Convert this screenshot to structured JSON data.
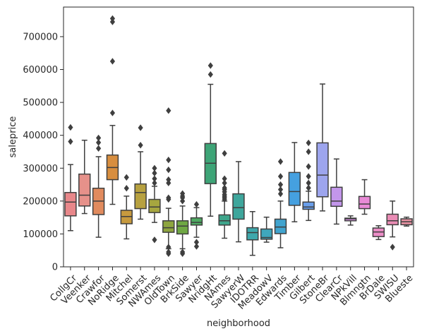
{
  "chart_data": {
    "type": "box",
    "xlabel": "neighborhood",
    "ylabel": "saleprice",
    "ylim": [
      0,
      790000
    ],
    "yticks": [
      0,
      100000,
      200000,
      300000,
      400000,
      500000,
      600000,
      700000
    ],
    "grid": false,
    "categories": [
      {
        "name": "CollgCr",
        "color": "#e8878a",
        "q1": 155000,
        "median": 197000,
        "q3": 226000,
        "whisker_low": 110000,
        "whisker_high": 311000,
        "outliers": [
          381000,
          424000
        ]
      },
      {
        "name": "Veenker",
        "color": "#e6918a",
        "q1": 185000,
        "median": 218000,
        "q3": 282000,
        "whisker_low": 162000,
        "whisker_high": 385000,
        "outliers": []
      },
      {
        "name": "Crawfor",
        "color": "#e18b5e",
        "q1": 159000,
        "median": 200000,
        "q3": 239000,
        "whisker_low": 90000,
        "whisker_high": 335000,
        "outliers": [
          360000,
          378000,
          392000
        ]
      },
      {
        "name": "NoRidge",
        "color": "#d88e3f",
        "q1": 265000,
        "median": 302000,
        "q3": 340000,
        "whisker_low": 190000,
        "whisker_high": 430000,
        "outliers": [
          468000,
          625000,
          745000,
          755000
        ]
      },
      {
        "name": "Mitchel",
        "color": "#c79a3e",
        "q1": 131000,
        "median": 153000,
        "q3": 172000,
        "whisker_low": 85000,
        "whisker_high": 215000,
        "outliers": [
          239000,
          272000
        ]
      },
      {
        "name": "Somerst",
        "color": "#b7a140",
        "q1": 177000,
        "median": 226000,
        "q3": 252000,
        "whisker_low": 145000,
        "whisker_high": 350000,
        "outliers": [
          370000,
          423000
        ]
      },
      {
        "name": "NWAmes",
        "color": "#a6a63f",
        "q1": 165000,
        "median": 182000,
        "q3": 205000,
        "whisker_low": 135000,
        "whisker_high": 245000,
        "outliers": [
          255000,
          268000,
          285000,
          300000,
          82000
        ]
      },
      {
        "name": "OldTown",
        "color": "#8ea53f",
        "q1": 105000,
        "median": 119000,
        "q3": 140000,
        "whisker_low": 55000,
        "whisker_high": 178000,
        "outliers": [
          40000,
          45000,
          60000,
          205000,
          210000,
          255000,
          265000,
          295000,
          325000,
          475000
        ]
      },
      {
        "name": "BrkSide",
        "color": "#6fa844",
        "q1": 100000,
        "median": 124000,
        "q3": 140000,
        "whisker_low": 55000,
        "whisker_high": 185000,
        "outliers": [
          40000,
          45000,
          200000,
          210000,
          215000,
          223000
        ]
      },
      {
        "name": "Sawyer",
        "color": "#4faa62",
        "q1": 127000,
        "median": 135000,
        "q3": 149000,
        "whisker_low": 90000,
        "whisker_high": 180000,
        "outliers": [
          62000,
          75000,
          190000
        ]
      },
      {
        "name": "NridgHt",
        "color": "#3ea477",
        "q1": 253000,
        "median": 315000,
        "q3": 375000,
        "whisker_low": 154000,
        "whisker_high": 555000,
        "outliers": [
          585000,
          612000
        ]
      },
      {
        "name": "NAmes",
        "color": "#3ea58b",
        "q1": 127000,
        "median": 140000,
        "q3": 158000,
        "whisker_low": 87000,
        "whisker_high": 200000,
        "outliers": [
          205000,
          210000,
          215000,
          220000,
          228000,
          235000,
          240000,
          255000,
          268000,
          345000
        ]
      },
      {
        "name": "SawyerW",
        "color": "#3ea69c",
        "q1": 145000,
        "median": 180000,
        "q3": 222000,
        "whisker_low": 76000,
        "whisker_high": 320000,
        "outliers": []
      },
      {
        "name": "IDOTRR",
        "color": "#3ea8ac",
        "q1": 82000,
        "median": 104000,
        "q3": 119000,
        "whisker_low": 35000,
        "whisker_high": 168000,
        "outliers": []
      },
      {
        "name": "MeadowV",
        "color": "#3fa7bd",
        "q1": 84000,
        "median": 89000,
        "q3": 115000,
        "whisker_low": 75000,
        "whisker_high": 151000,
        "outliers": []
      },
      {
        "name": "Edwards",
        "color": "#41a4cf",
        "q1": 101000,
        "median": 121000,
        "q3": 145000,
        "whisker_low": 58000,
        "whisker_high": 200000,
        "outliers": [
          222000,
          235000,
          250000,
          275000,
          320000
        ]
      },
      {
        "name": "Timber",
        "color": "#45a0e0",
        "q1": 187000,
        "median": 229000,
        "q3": 287000,
        "whisker_low": 137000,
        "whisker_high": 378000,
        "outliers": []
      },
      {
        "name": "Gilbert",
        "color": "#6a9eea",
        "q1": 175000,
        "median": 182000,
        "q3": 197000,
        "whisker_low": 141000,
        "whisker_high": 230000,
        "outliers": [
          240000,
          255000,
          275000,
          305000,
          350000,
          377000
        ]
      },
      {
        "name": "StoneBr",
        "color": "#9da5ee",
        "q1": 213000,
        "median": 279000,
        "q3": 377000,
        "whisker_low": 170000,
        "whisker_high": 556000,
        "outliers": []
      },
      {
        "name": "ClearCr",
        "color": "#c396eb",
        "q1": 184000,
        "median": 200000,
        "q3": 242000,
        "whisker_low": 130000,
        "whisker_high": 328000,
        "outliers": []
      },
      {
        "name": "NPkVill",
        "color": "#d88fe6",
        "q1": 140000,
        "median": 146000,
        "q3": 148000,
        "whisker_low": 127000,
        "whisker_high": 155000,
        "outliers": []
      },
      {
        "name": "Blmngtn",
        "color": "#e88ad6",
        "q1": 177000,
        "median": 191000,
        "q3": 214000,
        "whisker_low": 160000,
        "whisker_high": 265000,
        "outliers": []
      },
      {
        "name": "BrDale",
        "color": "#ec8dc7",
        "q1": 92000,
        "median": 106000,
        "q3": 118000,
        "whisker_low": 83000,
        "whisker_high": 125000,
        "outliers": []
      },
      {
        "name": "SWISU",
        "color": "#ea8cb5",
        "q1": 128000,
        "median": 140000,
        "q3": 160000,
        "whisker_low": 91000,
        "whisker_high": 200000,
        "outliers": [
          60000
        ]
      },
      {
        "name": "Blueste",
        "color": "#e892a2",
        "q1": 128000,
        "median": 137000,
        "q3": 146000,
        "whisker_low": 124000,
        "whisker_high": 151000,
        "outliers": []
      }
    ]
  }
}
